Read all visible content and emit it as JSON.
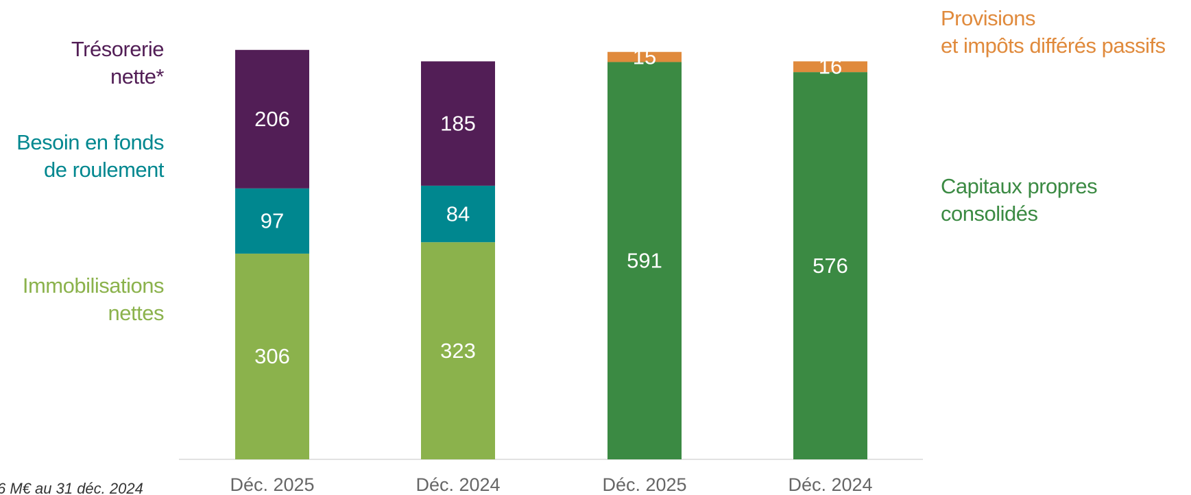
{
  "chart_data": {
    "type": "stacked_bar",
    "categories": [
      "Déc. 2025",
      "Déc. 2024",
      "Déc. 2025",
      "Déc. 2024"
    ],
    "series": [
      {
        "name": "Immobilisations\nnettes",
        "color": "#8bb24c",
        "values": [
          306,
          323,
          null,
          null
        ]
      },
      {
        "name": "Besoin en fonds\nde roulement",
        "color": "#00878f",
        "values": [
          97,
          84,
          null,
          null
        ]
      },
      {
        "name": "Trésorerie\nnette*",
        "color": "#521e56",
        "values": [
          206,
          185,
          null,
          null
        ]
      },
      {
        "name": "Capitaux propres\nconsolidés",
        "color": "#3b8a43",
        "values": [
          null,
          null,
          591,
          576
        ]
      },
      {
        "name": "Provisions\net impôts différés passifs",
        "color": "#e08a3c",
        "values": [
          null,
          null,
          15,
          16
        ]
      }
    ],
    "ylim": [
      0,
      620
    ],
    "footnote": "6 M€ au 31 déc. 2024"
  }
}
